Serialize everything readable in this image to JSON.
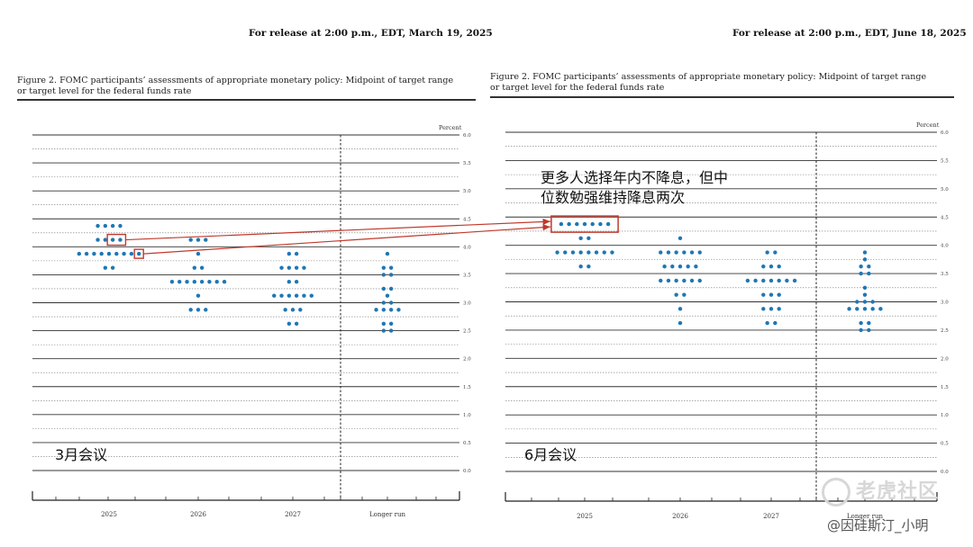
{
  "left_panel": {
    "release": "For release at 2:00 p.m., EDT, March 19, 2025",
    "figure_title_line1": "Figure 2.  FOMC participants’ assessments of appropriate monetary policy:  Midpoint of target range",
    "figure_title_line2": "or target level for the federal funds rate",
    "meeting_label": "3月会议"
  },
  "right_panel": {
    "release": "For release at 2:00 p.m., EDT, June 18, 2025",
    "figure_title_line1": "Figure 2.  FOMC participants’ assessments of appropriate monetary policy:  Midpoint of target range",
    "figure_title_line2": "or target level for the federal funds rate",
    "meeting_label": "6月会议",
    "annotation_line1": "更多人选择年内不降息，但中",
    "annotation_line2": "位数勉强维持降息两次"
  },
  "watermark": {
    "logo_text": "老虎社区",
    "user_text": "@因硅斯汀_小明"
  },
  "colors": {
    "dot": "#1f77b4",
    "highlight": "#c0392b",
    "gridline": "#555555"
  },
  "chart_data": [
    {
      "type": "scatter",
      "title": "",
      "unit_label": "Percent",
      "categories": [
        "2025",
        "2026",
        "2027",
        "Longer run"
      ],
      "y_ticks": [
        "0.0",
        "0.5",
        "1.0",
        "1.5",
        "2.0",
        "2.5",
        "3.0",
        "3.5",
        "4.0",
        "4.5",
        "5.0",
        "5.5",
        "6.0"
      ],
      "ylim": [
        0,
        6.0
      ],
      "grid": true,
      "series": [
        {
          "points": [
            {
              "category": "2025",
              "y": 4.375,
              "count": 4
            },
            {
              "category": "2025",
              "y": 4.125,
              "count": 4
            },
            {
              "category": "2025",
              "y": 3.875,
              "count": 9
            },
            {
              "category": "2025",
              "y": 3.625,
              "count": 2
            },
            {
              "category": "2026",
              "y": 4.125,
              "count": 3
            },
            {
              "category": "2026",
              "y": 3.875,
              "count": 1
            },
            {
              "category": "2026",
              "y": 3.625,
              "count": 2
            },
            {
              "category": "2026",
              "y": 3.375,
              "count": 8
            },
            {
              "category": "2026",
              "y": 3.125,
              "count": 1
            },
            {
              "category": "2026",
              "y": 2.875,
              "count": 3
            },
            {
              "category": "2027",
              "y": 3.875,
              "count": 2
            },
            {
              "category": "2027",
              "y": 3.625,
              "count": 4
            },
            {
              "category": "2027",
              "y": 3.375,
              "count": 2
            },
            {
              "category": "2027",
              "y": 3.125,
              "count": 6
            },
            {
              "category": "2027",
              "y": 2.875,
              "count": 3
            },
            {
              "category": "2027",
              "y": 2.625,
              "count": 2
            },
            {
              "category": "Longer run",
              "y": 3.875,
              "count": 1
            },
            {
              "category": "Longer run",
              "y": 3.625,
              "count": 2
            },
            {
              "category": "Longer run",
              "y": 3.5,
              "count": 2
            },
            {
              "category": "Longer run",
              "y": 3.25,
              "count": 2
            },
            {
              "category": "Longer run",
              "y": 3.125,
              "count": 1
            },
            {
              "category": "Longer run",
              "y": 3.0,
              "count": 2
            },
            {
              "category": "Longer run",
              "y": 2.875,
              "count": 4
            },
            {
              "category": "Longer run",
              "y": 2.625,
              "count": 2
            },
            {
              "category": "Longer run",
              "y": 2.5,
              "count": 2
            }
          ]
        }
      ],
      "highlights": [
        {
          "category": "2025",
          "y": 4.125,
          "note": "dots 3-4 boxed"
        },
        {
          "category": "2025",
          "y": 3.875,
          "note": "last dot boxed"
        }
      ]
    },
    {
      "type": "scatter",
      "title": "",
      "unit_label": "Percent",
      "categories": [
        "2025",
        "2026",
        "2027",
        "Longer run"
      ],
      "y_ticks": [
        "0.0",
        "0.5",
        "1.0",
        "1.5",
        "2.0",
        "2.5",
        "3.0",
        "3.5",
        "4.0",
        "4.5",
        "5.0",
        "5.5",
        "6.0"
      ],
      "ylim": [
        0,
        6.0
      ],
      "grid": true,
      "series": [
        {
          "points": [
            {
              "category": "2025",
              "y": 4.375,
              "count": 7
            },
            {
              "category": "2025",
              "y": 4.125,
              "count": 2
            },
            {
              "category": "2025",
              "y": 3.875,
              "count": 8
            },
            {
              "category": "2025",
              "y": 3.625,
              "count": 2
            },
            {
              "category": "2026",
              "y": 4.125,
              "count": 1
            },
            {
              "category": "2026",
              "y": 3.875,
              "count": 6
            },
            {
              "category": "2026",
              "y": 3.625,
              "count": 5
            },
            {
              "category": "2026",
              "y": 3.375,
              "count": 6
            },
            {
              "category": "2026",
              "y": 3.125,
              "count": 2
            },
            {
              "category": "2026",
              "y": 2.875,
              "count": 1
            },
            {
              "category": "2026",
              "y": 2.625,
              "count": 1
            },
            {
              "category": "2027",
              "y": 3.875,
              "count": 2
            },
            {
              "category": "2027",
              "y": 3.625,
              "count": 3
            },
            {
              "category": "2027",
              "y": 3.375,
              "count": 7
            },
            {
              "category": "2027",
              "y": 3.125,
              "count": 3
            },
            {
              "category": "2027",
              "y": 2.875,
              "count": 3
            },
            {
              "category": "2027",
              "y": 2.625,
              "count": 2
            },
            {
              "category": "Longer run",
              "y": 3.875,
              "count": 1
            },
            {
              "category": "Longer run",
              "y": 3.75,
              "count": 1
            },
            {
              "category": "Longer run",
              "y": 3.625,
              "count": 2
            },
            {
              "category": "Longer run",
              "y": 3.5,
              "count": 2
            },
            {
              "category": "Longer run",
              "y": 3.25,
              "count": 1
            },
            {
              "category": "Longer run",
              "y": 3.125,
              "count": 1
            },
            {
              "category": "Longer run",
              "y": 3.0,
              "count": 3
            },
            {
              "category": "Longer run",
              "y": 2.875,
              "count": 5
            },
            {
              "category": "Longer run",
              "y": 2.625,
              "count": 2
            },
            {
              "category": "Longer run",
              "y": 2.5,
              "count": 2
            }
          ]
        }
      ],
      "highlights": [
        {
          "category": "2025",
          "y": 4.375,
          "note": "top row of 7 boxed"
        }
      ]
    }
  ]
}
